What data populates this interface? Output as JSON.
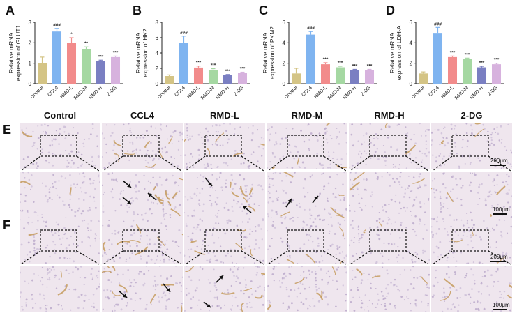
{
  "panels": {
    "A": "A",
    "B": "B",
    "C": "C",
    "D": "D",
    "E": "E",
    "F": "F"
  },
  "groups": [
    "Control",
    "CCL4",
    "RMD-L",
    "RMD-M",
    "RMD-H",
    "2-DG"
  ],
  "colors": {
    "Control": "#d4c485",
    "CCL4": "#7fb4f0",
    "RMD-L": "#f28b8b",
    "RMD-M": "#a5d8a2",
    "RMD-H": "#7a7fc2",
    "2-DG": "#d7b2de"
  },
  "chart_data": [
    {
      "type": "bar",
      "panel": "A",
      "title": "",
      "ylabel": "Relative mRNA expression of GLUT1",
      "ylabel_lines": [
        "Relative mRNA",
        "expression of GLUT1"
      ],
      "categories": [
        "Control",
        "CCL4",
        "RMD-L",
        "RMD-M",
        "RMD-H",
        "2-DG"
      ],
      "values": [
        1.0,
        2.55,
        2.0,
        1.7,
        1.1,
        1.3
      ],
      "errors": [
        0.3,
        0.15,
        0.25,
        0.1,
        0.05,
        0.05
      ],
      "significance": [
        "",
        "###",
        "*",
        "**",
        "***",
        "***"
      ],
      "ylim": [
        0,
        3
      ],
      "yticks": [
        "0",
        "1",
        "2",
        "3"
      ]
    },
    {
      "type": "bar",
      "panel": "B",
      "title": "",
      "ylabel": "Relative mRNA expression of HK2",
      "ylabel_lines": [
        "Relative mRNA",
        "expression of HK2"
      ],
      "categories": [
        "Control",
        "CCL4",
        "RMD-L",
        "RMD-M",
        "RMD-H",
        "2-DG"
      ],
      "values": [
        1.0,
        5.3,
        2.1,
        1.8,
        1.1,
        1.4
      ],
      "errors": [
        0.15,
        0.9,
        0.2,
        0.15,
        0.1,
        0.1
      ],
      "significance": [
        "",
        "###",
        "***",
        "***",
        "***",
        "***"
      ],
      "ylim": [
        0,
        8
      ],
      "yticks": [
        "0",
        "2",
        "4",
        "6",
        "8"
      ]
    },
    {
      "type": "bar",
      "panel": "C",
      "title": "",
      "ylabel": "Relative mRNA expression of PKM2",
      "ylabel_lines": [
        "Relative mRNA",
        "expression of PKM2"
      ],
      "categories": [
        "Control",
        "CCL4",
        "RMD-L",
        "RMD-M",
        "RMD-H",
        "2-DG"
      ],
      "values": [
        1.0,
        4.8,
        1.9,
        1.6,
        1.3,
        1.3
      ],
      "errors": [
        0.5,
        0.3,
        0.15,
        0.1,
        0.1,
        0.1
      ],
      "significance": [
        "",
        "###",
        "***",
        "***",
        "***",
        "***"
      ],
      "ylim": [
        0,
        6
      ],
      "yticks": [
        "0",
        "2",
        "4",
        "6"
      ]
    },
    {
      "type": "bar",
      "panel": "D",
      "title": "",
      "ylabel": "Relative mRNA expression of LDH-A",
      "ylabel_lines": [
        "Relative mRNA",
        "expression of LDH-A"
      ],
      "categories": [
        "Control",
        "CCL4",
        "RMD-L",
        "RMD-M",
        "RMD-H",
        "2-DG"
      ],
      "values": [
        1.0,
        4.9,
        2.6,
        2.4,
        1.6,
        1.9
      ],
      "errors": [
        0.15,
        0.6,
        0.1,
        0.1,
        0.1,
        0.1
      ],
      "significance": [
        "",
        "###",
        "***",
        "***",
        "***",
        "***"
      ],
      "ylim": [
        0,
        6
      ],
      "yticks": [
        "0",
        "2",
        "4",
        "6"
      ]
    }
  ],
  "scale_bars": {
    "overview": "200μm",
    "zoom": "100μm"
  }
}
